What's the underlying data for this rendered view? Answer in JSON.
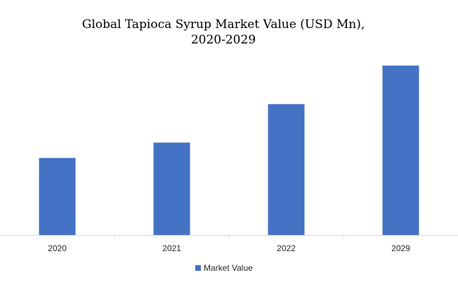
{
  "chart_data": {
    "type": "bar",
    "title_lines": [
      "Global Tapioca Syrup  Market Value (USD Mn),",
      "2020-2029"
    ],
    "categories": [
      "2020",
      "2021",
      "2022",
      "2029"
    ],
    "series": [
      {
        "name": "Market Value",
        "values": [
          20,
          24,
          34,
          44
        ]
      }
    ],
    "xlabel": "",
    "ylabel": "",
    "ylim": [
      0,
      45
    ],
    "y_axis_visible": false,
    "grid": false,
    "legend_position": "bottom",
    "bar_color": "#4472C4",
    "axis_color": "#D9D9D9"
  }
}
